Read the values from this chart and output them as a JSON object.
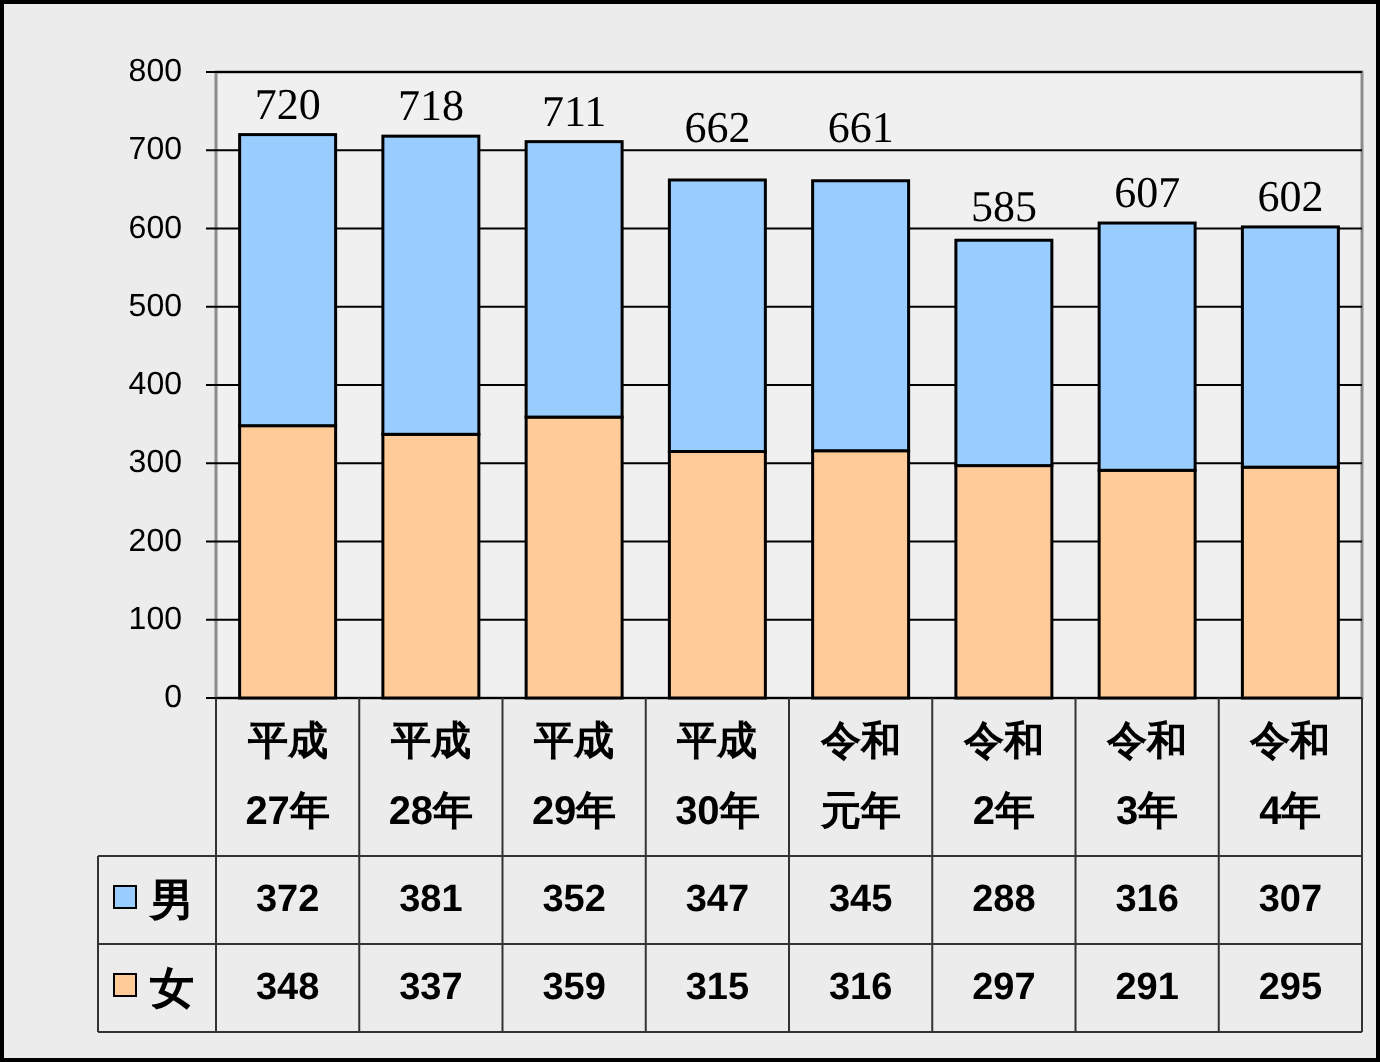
{
  "chart_data": {
    "type": "bar",
    "categories": [
      "平成27年",
      "平成28年",
      "平成29年",
      "平成30年",
      "令和元年",
      "令和2年",
      "令和3年",
      "令和4年"
    ],
    "series": [
      {
        "name": "女",
        "color": "#ffcc99",
        "values": [
          348,
          337,
          359,
          315,
          316,
          297,
          291,
          295
        ]
      },
      {
        "name": "男",
        "color": "#99ccff",
        "values": [
          372,
          381,
          352,
          347,
          345,
          288,
          316,
          307
        ]
      }
    ],
    "stacked": true,
    "ylim": [
      0,
      800
    ],
    "yticks": [
      0,
      100,
      200,
      300,
      400,
      500,
      600,
      700,
      800
    ],
    "grid": "y",
    "legend": "bottom left",
    "data_labels": true,
    "totals": [
      "720",
      "718",
      "711",
      "662",
      "661",
      "585",
      "607",
      "602"
    ]
  }
}
